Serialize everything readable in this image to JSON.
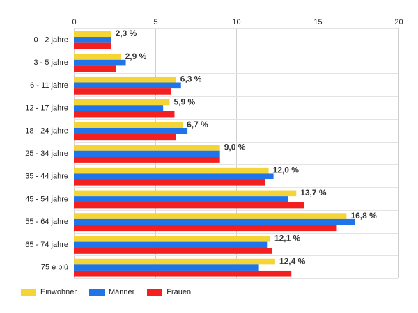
{
  "chart_data": {
    "type": "bar",
    "orientation": "horizontal",
    "title": "",
    "xlabel": "",
    "ylabel": "",
    "xlim": [
      0,
      20
    ],
    "xticks": [
      0,
      5,
      10,
      15,
      20
    ],
    "grid": true,
    "legend_position": "bottom-left",
    "categories": [
      "0 - 2 jahre",
      "3 - 5 jahre",
      "6 - 11 jahre",
      "12 - 17 jahre",
      "18 - 24 jahre",
      "25 - 34 jahre",
      "35 - 44 jahre",
      "45 - 54 jahre",
      "55 - 64 jahre",
      "65 - 74 jahre",
      "75 e più"
    ],
    "series": [
      {
        "name": "Einwohner",
        "color": "#f5d535",
        "values": [
          2.3,
          2.9,
          6.3,
          5.9,
          6.7,
          9.0,
          12.0,
          13.7,
          16.8,
          12.1,
          12.4
        ]
      },
      {
        "name": "Männer",
        "color": "#1e74e8",
        "values": [
          2.3,
          3.2,
          6.6,
          5.5,
          7.0,
          9.0,
          12.3,
          13.2,
          17.3,
          11.9,
          11.4
        ]
      },
      {
        "name": "Frauen",
        "color": "#f41f1f",
        "values": [
          2.3,
          2.6,
          6.0,
          6.2,
          6.3,
          9.0,
          11.8,
          14.2,
          16.2,
          12.2,
          13.4
        ]
      }
    ],
    "data_labels": [
      "2,3 %",
      "2,9 %",
      "6,3 %",
      "5,9 %",
      "6,7 %",
      "9,0 %",
      "12,0 %",
      "13,7 %",
      "16,8 %",
      "12,1 %",
      "12,4 %"
    ]
  }
}
